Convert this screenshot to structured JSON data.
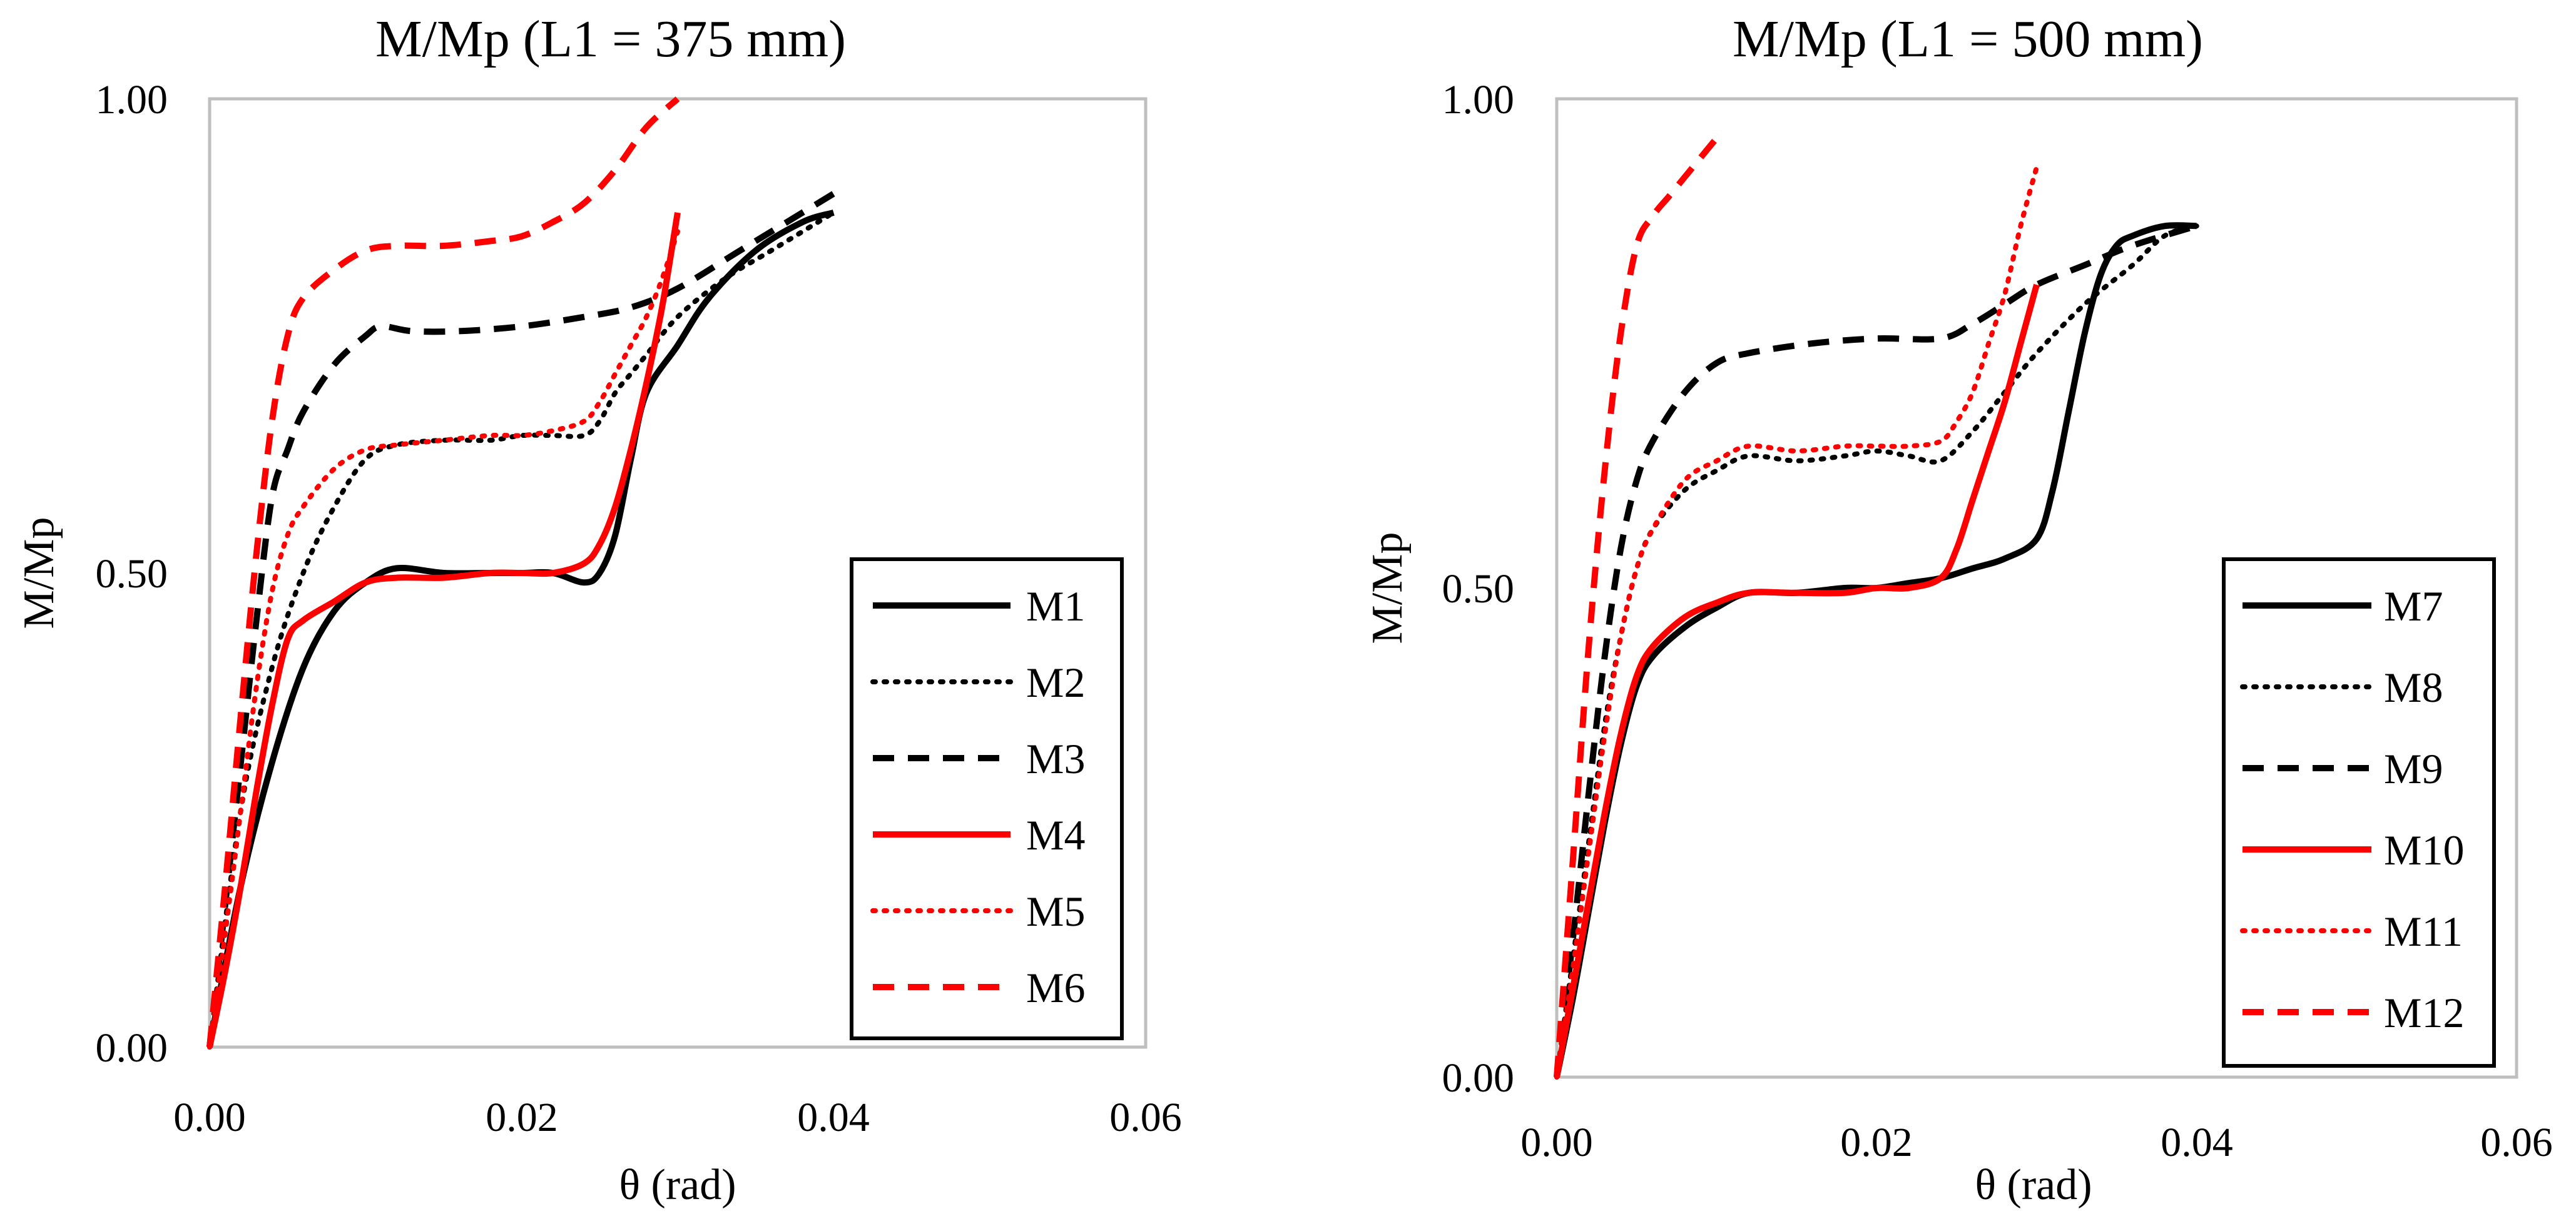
{
  "chart_data": [
    {
      "type": "line",
      "title": "M/Mp (L1 = 375 mm)",
      "xlabel": "θ (rad)",
      "ylabel": "M/Mp",
      "xlim": [
        0,
        0.06
      ],
      "ylim": [
        0,
        1.0
      ],
      "xticks": [
        0,
        0.02,
        0.04,
        0.06
      ],
      "xtick_labels": [
        "0.00",
        "0.02",
        "0.04",
        "0.06"
      ],
      "yticks": [
        0,
        0.5,
        1.0
      ],
      "ytick_labels": [
        "0.00",
        "0.50",
        "1.00"
      ],
      "grid": false,
      "legend_position": "bottom-right",
      "series": [
        {
          "name": "M1",
          "color": "#000000",
          "dash": "solid",
          "x": [
            0,
            0.002,
            0.004,
            0.006,
            0.008,
            0.01,
            0.012,
            0.015,
            0.018,
            0.02,
            0.022,
            0.024,
            0.025,
            0.026,
            0.027,
            0.028,
            0.03,
            0.032,
            0.035,
            0.038,
            0.04
          ],
          "y": [
            0,
            0.17,
            0.3,
            0.4,
            0.46,
            0.49,
            0.505,
            0.5,
            0.5,
            0.5,
            0.5,
            0.49,
            0.5,
            0.54,
            0.62,
            0.69,
            0.74,
            0.79,
            0.84,
            0.87,
            0.88
          ]
        },
        {
          "name": "M2",
          "color": "#000000",
          "dash": "dotted",
          "x": [
            0,
            0.002,
            0.004,
            0.006,
            0.008,
            0.01,
            0.012,
            0.015,
            0.018,
            0.02,
            0.022,
            0.024,
            0.025,
            0.026,
            0.027,
            0.028,
            0.03,
            0.033,
            0.036,
            0.04
          ],
          "y": [
            0,
            0.25,
            0.4,
            0.5,
            0.57,
            0.62,
            0.635,
            0.64,
            0.64,
            0.645,
            0.645,
            0.645,
            0.66,
            0.69,
            0.71,
            0.73,
            0.77,
            0.81,
            0.84,
            0.88
          ]
        },
        {
          "name": "M3",
          "color": "#000000",
          "dash": "dashed",
          "x": [
            0,
            0.001,
            0.002,
            0.003,
            0.004,
            0.005,
            0.006,
            0.008,
            0.01,
            0.011,
            0.013,
            0.016,
            0.02,
            0.024,
            0.027,
            0.03,
            0.034,
            0.037,
            0.04
          ],
          "y": [
            0,
            0.15,
            0.3,
            0.45,
            0.58,
            0.63,
            0.67,
            0.72,
            0.75,
            0.76,
            0.755,
            0.755,
            0.76,
            0.77,
            0.78,
            0.8,
            0.84,
            0.87,
            0.9
          ]
        },
        {
          "name": "M4",
          "color": "#ff0000",
          "dash": "solid",
          "x": [
            0,
            0.001,
            0.002,
            0.003,
            0.004,
            0.005,
            0.006,
            0.008,
            0.01,
            0.012,
            0.015,
            0.018,
            0.02,
            0.022,
            0.024,
            0.025,
            0.026,
            0.027,
            0.028,
            0.029,
            0.03
          ],
          "y": [
            0,
            0.08,
            0.17,
            0.27,
            0.36,
            0.43,
            0.45,
            0.47,
            0.49,
            0.495,
            0.495,
            0.5,
            0.5,
            0.5,
            0.51,
            0.53,
            0.57,
            0.63,
            0.7,
            0.78,
            0.88
          ]
        },
        {
          "name": "M5",
          "color": "#ff0000",
          "dash": "dotted",
          "x": [
            0,
            0.001,
            0.002,
            0.003,
            0.004,
            0.005,
            0.006,
            0.008,
            0.01,
            0.012,
            0.015,
            0.018,
            0.02,
            0.022,
            0.024,
            0.025,
            0.026,
            0.027,
            0.028,
            0.029,
            0.03
          ],
          "y": [
            0,
            0.12,
            0.25,
            0.38,
            0.48,
            0.54,
            0.57,
            0.61,
            0.63,
            0.635,
            0.64,
            0.645,
            0.645,
            0.65,
            0.66,
            0.68,
            0.71,
            0.74,
            0.77,
            0.81,
            0.86
          ]
        },
        {
          "name": "M6",
          "color": "#ff0000",
          "dash": "dashed",
          "x": [
            0,
            0.001,
            0.002,
            0.003,
            0.004,
            0.005,
            0.006,
            0.008,
            0.01,
            0.012,
            0.015,
            0.018,
            0.02,
            0.022,
            0.024,
            0.026,
            0.028,
            0.03
          ],
          "y": [
            0,
            0.17,
            0.35,
            0.52,
            0.66,
            0.75,
            0.79,
            0.82,
            0.84,
            0.845,
            0.845,
            0.85,
            0.855,
            0.87,
            0.89,
            0.925,
            0.97,
            1.0
          ]
        }
      ]
    },
    {
      "type": "line",
      "title": "M/Mp (L1 = 500 mm)",
      "xlabel": "θ (rad)",
      "ylabel": "M/Mp",
      "xlim": [
        0,
        0.06
      ],
      "ylim": [
        0,
        1.0
      ],
      "xticks": [
        0,
        0.02,
        0.04,
        0.06
      ],
      "xtick_labels": [
        "0.00",
        "0.02",
        "0.04",
        "0.06"
      ],
      "yticks": [
        0,
        0.5,
        1.0
      ],
      "ytick_labels": [
        "0.00",
        "0.50",
        "1.00"
      ],
      "grid": false,
      "legend_position": "bottom-right",
      "series": [
        {
          "name": "M7",
          "color": "#000000",
          "dash": "solid",
          "x": [
            0,
            0.001,
            0.002,
            0.003,
            0.004,
            0.005,
            0.006,
            0.008,
            0.01,
            0.012,
            0.015,
            0.018,
            0.02,
            0.022,
            0.024,
            0.026,
            0.028,
            0.03,
            0.031,
            0.032,
            0.033,
            0.034,
            0.035,
            0.036,
            0.038,
            0.04
          ],
          "y": [
            0,
            0.08,
            0.17,
            0.26,
            0.34,
            0.4,
            0.43,
            0.46,
            0.48,
            0.495,
            0.495,
            0.5,
            0.5,
            0.505,
            0.51,
            0.52,
            0.53,
            0.55,
            0.6,
            0.68,
            0.76,
            0.82,
            0.85,
            0.86,
            0.87,
            0.87
          ]
        },
        {
          "name": "M8",
          "color": "#000000",
          "dash": "dotted",
          "x": [
            0,
            0.001,
            0.002,
            0.003,
            0.004,
            0.005,
            0.006,
            0.008,
            0.01,
            0.012,
            0.015,
            0.018,
            0.02,
            0.022,
            0.024,
            0.026,
            0.028,
            0.03,
            0.033,
            0.036,
            0.038,
            0.04
          ],
          "y": [
            0,
            0.12,
            0.24,
            0.36,
            0.45,
            0.52,
            0.56,
            0.6,
            0.62,
            0.635,
            0.63,
            0.635,
            0.64,
            0.635,
            0.63,
            0.66,
            0.7,
            0.74,
            0.79,
            0.83,
            0.86,
            0.87
          ]
        },
        {
          "name": "M9",
          "color": "#000000",
          "dash": "dashed",
          "x": [
            0,
            0.001,
            0.002,
            0.003,
            0.004,
            0.005,
            0.006,
            0.008,
            0.01,
            0.012,
            0.016,
            0.02,
            0.024,
            0.026,
            0.028,
            0.03,
            0.033,
            0.036,
            0.04
          ],
          "y": [
            0,
            0.14,
            0.29,
            0.43,
            0.54,
            0.61,
            0.65,
            0.7,
            0.73,
            0.74,
            0.75,
            0.755,
            0.755,
            0.77,
            0.79,
            0.81,
            0.83,
            0.85,
            0.87
          ]
        },
        {
          "name": "M10",
          "color": "#ff0000",
          "dash": "solid",
          "x": [
            0,
            0.001,
            0.002,
            0.003,
            0.004,
            0.005,
            0.006,
            0.008,
            0.01,
            0.012,
            0.015,
            0.018,
            0.02,
            0.022,
            0.024,
            0.025,
            0.026,
            0.027,
            0.028,
            0.029,
            0.03
          ],
          "y": [
            0,
            0.09,
            0.18,
            0.27,
            0.35,
            0.41,
            0.44,
            0.47,
            0.485,
            0.495,
            0.495,
            0.495,
            0.5,
            0.5,
            0.51,
            0.54,
            0.59,
            0.64,
            0.69,
            0.75,
            0.81
          ]
        },
        {
          "name": "M11",
          "color": "#ff0000",
          "dash": "dotted",
          "x": [
            0,
            0.001,
            0.002,
            0.003,
            0.004,
            0.005,
            0.006,
            0.008,
            0.01,
            0.012,
            0.015,
            0.018,
            0.02,
            0.022,
            0.024,
            0.025,
            0.026,
            0.027,
            0.028,
            0.029,
            0.03
          ],
          "y": [
            0,
            0.11,
            0.23,
            0.35,
            0.45,
            0.52,
            0.56,
            0.61,
            0.63,
            0.645,
            0.64,
            0.645,
            0.645,
            0.645,
            0.65,
            0.67,
            0.7,
            0.75,
            0.8,
            0.87,
            0.93
          ]
        },
        {
          "name": "M12",
          "color": "#ff0000",
          "dash": "dashed",
          "x": [
            0,
            0.001,
            0.002,
            0.003,
            0.004,
            0.005,
            0.006,
            0.007,
            0.008,
            0.009,
            0.01
          ],
          "y": [
            0,
            0.22,
            0.44,
            0.62,
            0.76,
            0.85,
            0.88,
            0.9,
            0.92,
            0.94,
            0.96
          ]
        }
      ]
    }
  ]
}
